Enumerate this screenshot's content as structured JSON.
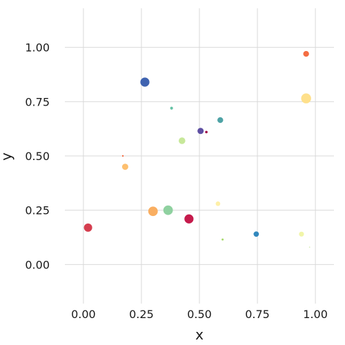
{
  "chart_data": {
    "type": "scatter",
    "xlabel": "x",
    "ylabel": "y",
    "xlim": [
      -0.08,
      1.08
    ],
    "ylim": [
      -0.18,
      1.18
    ],
    "x_ticks": [
      0.0,
      0.25,
      0.5,
      0.75,
      1.0
    ],
    "x_tick_labels": [
      "0.00",
      "0.25",
      "0.50",
      "0.75",
      "1.00"
    ],
    "y_ticks": [
      0.0,
      0.25,
      0.5,
      0.75,
      1.0
    ],
    "y_tick_labels": [
      "0.00",
      "0.25",
      "0.50",
      "0.75",
      "1.00"
    ],
    "grid": true,
    "legend": "none",
    "points": [
      {
        "x": 0.02,
        "y": 0.17,
        "size": 1.0,
        "color": "#d53e4f"
      },
      {
        "x": 0.17,
        "y": 0.5,
        "size": 0.2,
        "color": "#f46d43"
      },
      {
        "x": 0.18,
        "y": 0.45,
        "size": 0.75,
        "color": "#fdbf6f"
      },
      {
        "x": 0.265,
        "y": 0.84,
        "size": 1.1,
        "color": "#3f63b0"
      },
      {
        "x": 0.3,
        "y": 0.245,
        "size": 1.15,
        "color": "#f9ae61"
      },
      {
        "x": 0.365,
        "y": 0.25,
        "size": 1.15,
        "color": "#8fd1a0"
      },
      {
        "x": 0.38,
        "y": 0.72,
        "size": 0.35,
        "color": "#66c2a5"
      },
      {
        "x": 0.425,
        "y": 0.57,
        "size": 0.8,
        "color": "#c7e89a"
      },
      {
        "x": 0.455,
        "y": 0.21,
        "size": 1.1,
        "color": "#c51b4c"
      },
      {
        "x": 0.505,
        "y": 0.615,
        "size": 0.75,
        "color": "#5e4fa2"
      },
      {
        "x": 0.53,
        "y": 0.61,
        "size": 0.3,
        "color": "#9e0142"
      },
      {
        "x": 0.58,
        "y": 0.28,
        "size": 0.55,
        "color": "#fef0a8"
      },
      {
        "x": 0.59,
        "y": 0.665,
        "size": 0.7,
        "color": "#4fa3a6"
      },
      {
        "x": 0.6,
        "y": 0.115,
        "size": 0.25,
        "color": "#a6d96a"
      },
      {
        "x": 0.745,
        "y": 0.14,
        "size": 0.65,
        "color": "#3288bd"
      },
      {
        "x": 0.94,
        "y": 0.14,
        "size": 0.6,
        "color": "#f1f5a8"
      },
      {
        "x": 0.96,
        "y": 0.97,
        "size": 0.7,
        "color": "#f46d43"
      },
      {
        "x": 0.96,
        "y": 0.765,
        "size": 1.2,
        "color": "#fee08b"
      },
      {
        "x": 0.975,
        "y": 0.08,
        "size": 0.1,
        "color": "#cfe8a8"
      }
    ]
  }
}
